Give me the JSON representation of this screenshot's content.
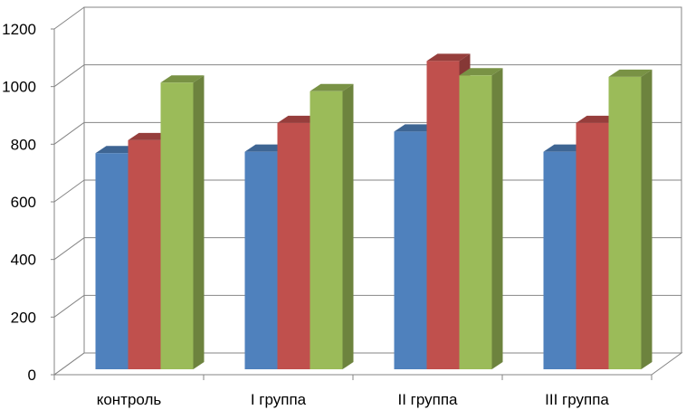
{
  "chart_data": {
    "type": "bar",
    "style": "3d-clustered-column",
    "categories": [
      "контроль",
      "I группа",
      "II группа",
      "III группа"
    ],
    "series": [
      {
        "values": [
          750,
          755,
          825,
          755
        ],
        "color": "#4F81BD"
      },
      {
        "values": [
          795,
          855,
          1070,
          855
        ],
        "color": "#C0504D"
      },
      {
        "values": [
          995,
          965,
          1020,
          1015
        ],
        "color": "#9BBB59"
      }
    ],
    "ylim": [
      0,
      1200
    ],
    "yticks": [
      0,
      200,
      400,
      600,
      800,
      1000,
      1200
    ],
    "ytick_labels": [
      "0",
      "200",
      "400",
      "600",
      "800",
      "1000",
      "1200"
    ],
    "grid": true,
    "legend": "none"
  }
}
